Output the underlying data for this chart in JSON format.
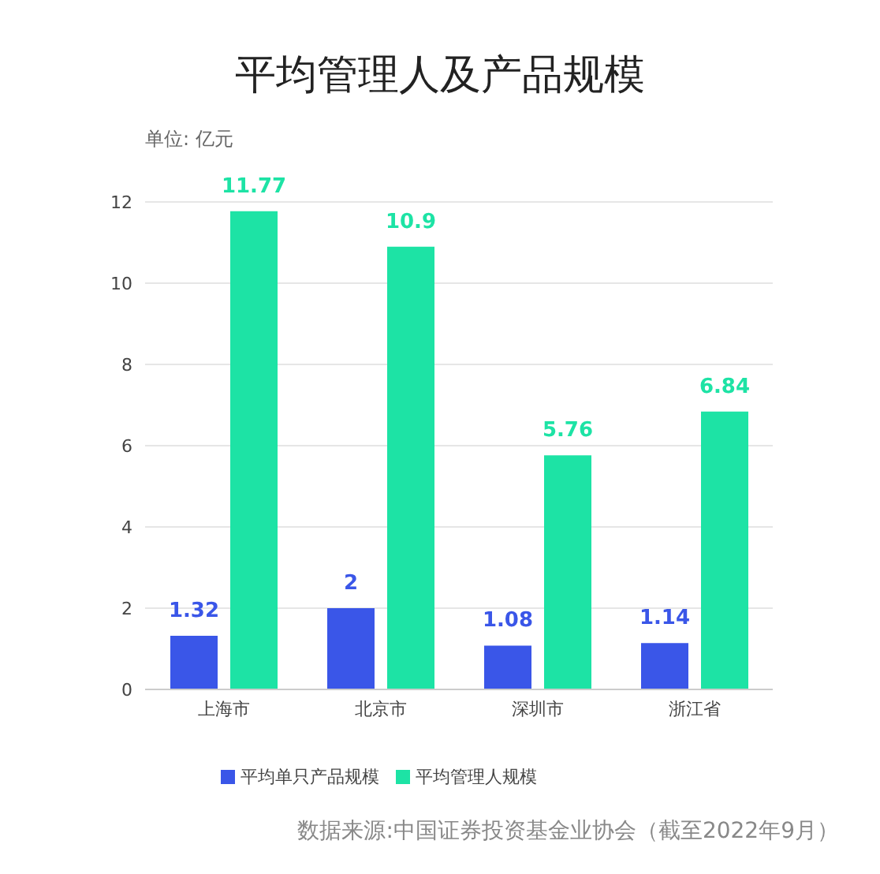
{
  "chart_data": {
    "type": "bar",
    "title": "平均管理人及产品规模",
    "ylabel": "单位: 亿元",
    "categories": [
      "上海市",
      "北京市",
      "深圳市",
      "浙江省"
    ],
    "series": [
      {
        "name": "平均单只产品规模",
        "color": "#3a56e8",
        "values": [
          1.32,
          2,
          1.08,
          1.14
        ]
      },
      {
        "name": "平均管理人规模",
        "color": "#1de3a5",
        "values": [
          11.77,
          10.9,
          5.76,
          6.84
        ]
      }
    ],
    "ylim": [
      0,
      12
    ],
    "yticks": [
      0,
      2,
      4,
      6,
      8,
      10,
      12
    ],
    "grid": "y",
    "legend": "bottom",
    "data_labels": true,
    "annotations": [
      "数据来源:中国证券投资基金业协会（截至2022年9月）"
    ]
  }
}
